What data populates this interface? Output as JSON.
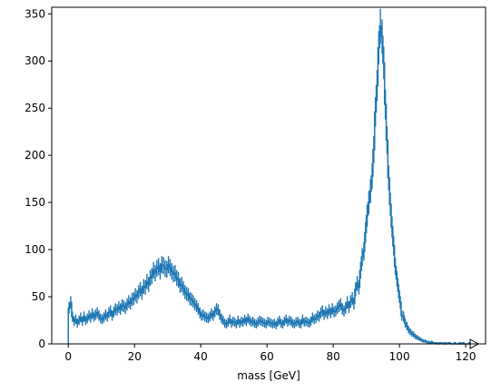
{
  "chart_data": {
    "type": "histogram",
    "xlabel": "mass [GeV]",
    "ylabel": "",
    "title": "",
    "xlim": [
      -5,
      126
    ],
    "ylim": [
      0,
      357
    ],
    "xticks": [
      0,
      20,
      40,
      60,
      80,
      100,
      120
    ],
    "yticks": [
      0,
      50,
      100,
      150,
      200,
      250,
      300,
      350
    ],
    "grid": false,
    "legend": "none",
    "overflow_marker": "right",
    "color": "#1f77b4",
    "bin_width": 0.5,
    "x_start": 0,
    "values": [
      38,
      44,
      29,
      24,
      26,
      22,
      25,
      28,
      24,
      29,
      25,
      27,
      30,
      28,
      32,
      29,
      31,
      33,
      30,
      27,
      26,
      28,
      31,
      29,
      33,
      35,
      30,
      34,
      37,
      36,
      39,
      37,
      41,
      40,
      38,
      42,
      45,
      43,
      47,
      48,
      52,
      50,
      55,
      58,
      54,
      61,
      60,
      66,
      63,
      70,
      72,
      78,
      75,
      80,
      82,
      77,
      84,
      83,
      80,
      79,
      84,
      81,
      77,
      74,
      75,
      70,
      68,
      62,
      63,
      59,
      55,
      53,
      52,
      48,
      47,
      45,
      42,
      40,
      37,
      33,
      30,
      31,
      29,
      28,
      27,
      29,
      32,
      30,
      34,
      37,
      36,
      31,
      27,
      25,
      22,
      21,
      23,
      26,
      22,
      24,
      23,
      21,
      25,
      22,
      24,
      23,
      26,
      24,
      27,
      25,
      23,
      24,
      22,
      21,
      23,
      25,
      24,
      23,
      22,
      21,
      24,
      23,
      22,
      21,
      22,
      20,
      23,
      25,
      22,
      21,
      24,
      26,
      23,
      25,
      24,
      22,
      21,
      23,
      24,
      22,
      21,
      26,
      23,
      24,
      23,
      22,
      24,
      28,
      26,
      27,
      30,
      29,
      33,
      35,
      31,
      34,
      32,
      36,
      33,
      37,
      34,
      35,
      38,
      40,
      42,
      37,
      35,
      38,
      44,
      39,
      45,
      48,
      43,
      58,
      64,
      60,
      78,
      92,
      98,
      118,
      136,
      150,
      162,
      178,
      206,
      246,
      274,
      314,
      337,
      326,
      298,
      254,
      216,
      176,
      148,
      124,
      104,
      82,
      69,
      56,
      44,
      30,
      29,
      22,
      19,
      15,
      13,
      11,
      10,
      8,
      7,
      6,
      5,
      4,
      3,
      3,
      2,
      2,
      1,
      2,
      1,
      1,
      1,
      0,
      1,
      1,
      0,
      1,
      0,
      1,
      1,
      0,
      0,
      1,
      0,
      0,
      1,
      0,
      1,
      0,
      0,
      0,
      1,
      0,
      0,
      0
    ]
  }
}
